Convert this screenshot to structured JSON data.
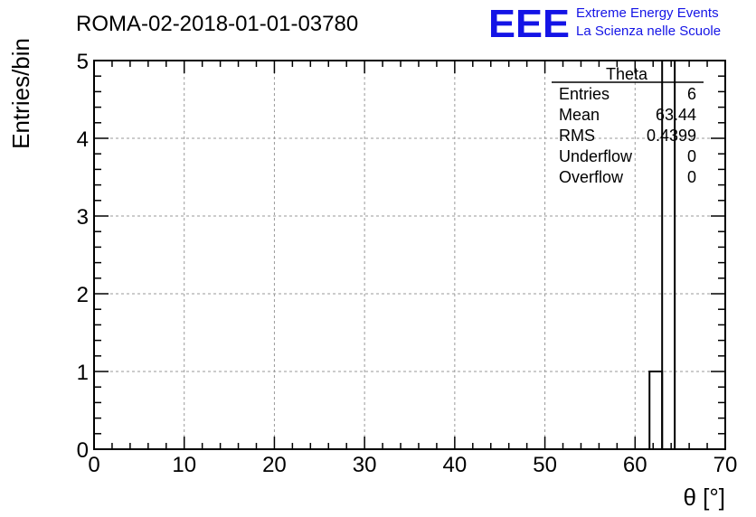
{
  "header": {
    "run_title": "ROMA-02-2018-01-01-03780",
    "logo_letters": "EEE",
    "logo_line1": "Extreme Energy Events",
    "logo_line2": "La Scienza nelle Scuole",
    "logo_color": "#1414e6"
  },
  "stats": {
    "title": "Theta",
    "rows": [
      {
        "label": "Entries",
        "value": "6"
      },
      {
        "label": "Mean",
        "value": "63.44"
      },
      {
        "label": "RMS",
        "value": "0.4399"
      },
      {
        "label": "Underflow",
        "value": "0"
      },
      {
        "label": "Overflow",
        "value": "0"
      }
    ]
  },
  "chart_data": {
    "type": "bar",
    "title": "ROMA-02-2018-01-01-03780",
    "xlabel": "θ [°]",
    "ylabel": "Entries/bin",
    "xlim": [
      0,
      70
    ],
    "ylim": [
      0,
      5
    ],
    "xticks": [
      0,
      10,
      20,
      30,
      40,
      50,
      60,
      70
    ],
    "yticks": [
      0,
      1,
      2,
      3,
      4,
      5
    ],
    "grid": true,
    "bins": [
      {
        "x0": 61.6,
        "x1": 63.0,
        "value": 1
      },
      {
        "x0": 63.0,
        "x1": 64.4,
        "value": 5
      }
    ]
  }
}
